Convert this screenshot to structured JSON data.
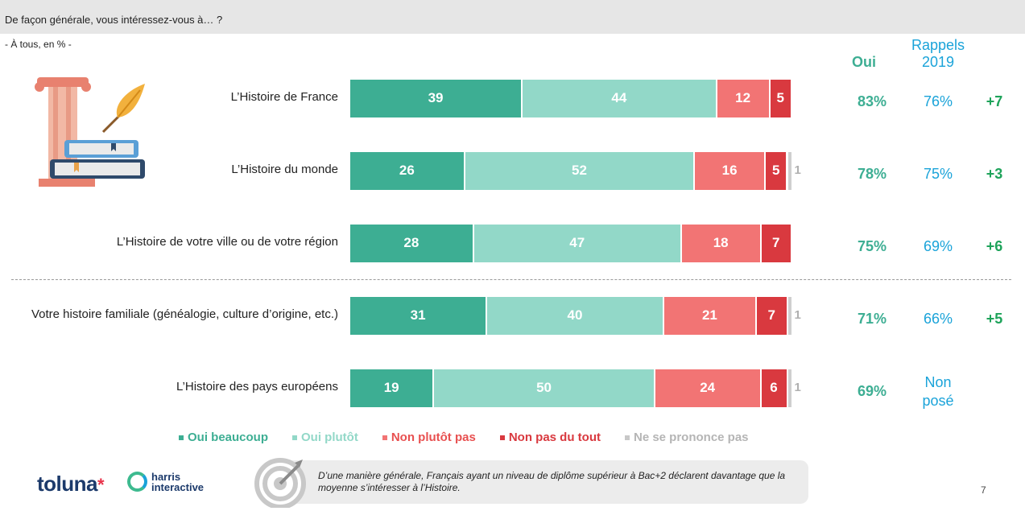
{
  "header": {
    "question": "De façon générale, vous intéressez-vous à… ?",
    "base": "- À tous, en % -"
  },
  "columns": {
    "oui": "Oui",
    "rappels_line1": "Rappels",
    "rappels_line2": "2019"
  },
  "chart_data": {
    "type": "bar",
    "orientation": "horizontal",
    "stacked": true,
    "categories": [
      "L’Histoire de France",
      "L’Histoire du monde",
      "L’Histoire de votre ville ou de votre région",
      "Votre histoire familiale (généalogie, culture d’origine, etc.)",
      "L’Histoire des pays européens"
    ],
    "series": [
      {
        "name": "Oui beaucoup",
        "color": "#3dae93",
        "values": [
          39,
          26,
          28,
          31,
          19
        ]
      },
      {
        "name": "Oui plutôt",
        "color": "#92d8c8",
        "values": [
          44,
          52,
          47,
          40,
          50
        ]
      },
      {
        "name": "Non plutôt pas",
        "color": "#f27474",
        "values": [
          12,
          16,
          18,
          21,
          24
        ]
      },
      {
        "name": "Non pas du tout",
        "color": "#d9393f",
        "values": [
          5,
          5,
          7,
          7,
          6
        ]
      },
      {
        "name": "Ne se prononce pas",
        "color": "#c8c8c8",
        "values": [
          null,
          1,
          null,
          1,
          1
        ]
      }
    ],
    "legend_position": "bottom",
    "totals_oui": [
      "83%",
      "78%",
      "75%",
      "71%",
      "69%"
    ],
    "rappels_2019": [
      "76%",
      "75%",
      "69%",
      "66%",
      ""
    ],
    "rappels_2019_missing_line1": "Non",
    "rappels_2019_missing_line2": "posé",
    "evolution": [
      "+7",
      "+3",
      "+6",
      "+5",
      ""
    ]
  },
  "legend": {
    "items": [
      "Oui beaucoup",
      "Oui plutôt",
      "Non plutôt pas",
      "Non pas du tout",
      "Ne se prononce pas"
    ],
    "colors": [
      "#3dae93",
      "#92d8c8",
      "#f27474",
      "#d9393f",
      "#c8c8c8"
    ]
  },
  "footer": {
    "logo_toluna": "toluna",
    "logo_star": "*",
    "logo_harris_line1": "harris",
    "logo_harris_line2": "interactive",
    "note": "D’une manière générale, Français ayant un niveau de diplôme supérieur à Bac+2 déclarent davantage que la moyenne s’intéresser à l’Histoire.",
    "page_number": "7"
  }
}
